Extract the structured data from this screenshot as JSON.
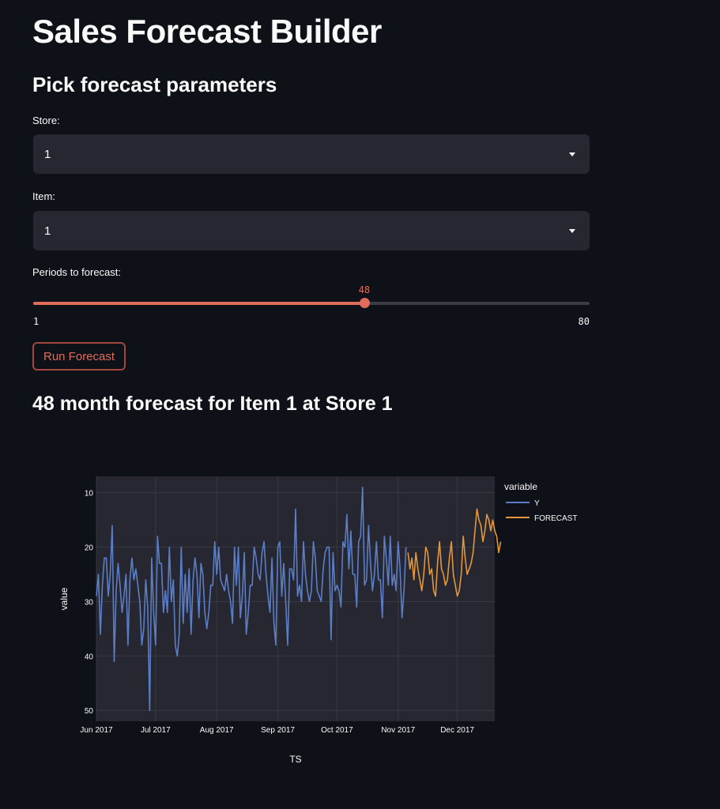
{
  "app": {
    "title": "Sales Forecast Builder",
    "subtitle": "Pick forecast parameters"
  },
  "store": {
    "label": "Store:",
    "value": "1"
  },
  "item": {
    "label": "Item:",
    "value": "1"
  },
  "periods": {
    "label": "Periods to forecast:",
    "value": 48,
    "value_text": "48",
    "min": 1,
    "min_text": "1",
    "max": 80,
    "max_text": "80"
  },
  "run_button": {
    "label": "Run Forecast"
  },
  "forecast_title": "48 month forecast for Item 1 at Store 1",
  "colors": {
    "accent": "#e06c5a",
    "background": "#0e1117",
    "input_bg": "#262730",
    "plot_bg": "#262730",
    "series_y": "#5b7ec6",
    "series_forecast": "#e3973a"
  },
  "chart_data": {
    "type": "line",
    "xlabel": "TS",
    "ylabel": "value",
    "y_reversed": true,
    "ylim": [
      52,
      7
    ],
    "xlim": [
      "2017-06-01",
      "2017-12-20"
    ],
    "x_ticks": [
      "Jun 2017",
      "Jul 2017",
      "Aug 2017",
      "Sep 2017",
      "Oct 2017",
      "Nov 2017",
      "Dec 2017"
    ],
    "x_tick_dates": [
      "2017-06-01",
      "2017-07-01",
      "2017-08-01",
      "2017-09-01",
      "2017-10-01",
      "2017-11-01",
      "2017-12-01"
    ],
    "y_ticks": [
      10,
      20,
      30,
      40,
      50
    ],
    "grid": true,
    "legend": {
      "title": "variable",
      "position": "right"
    },
    "series": [
      {
        "name": "Y",
        "start": "2017-06-01",
        "values": [
          29,
          25,
          36,
          27,
          22,
          22,
          29,
          25,
          16,
          41,
          28,
          23,
          27,
          32,
          29,
          25,
          38,
          26,
          22,
          26,
          24,
          27,
          30,
          38,
          35,
          26,
          31,
          50,
          22,
          32,
          38,
          18,
          23,
          23,
          32,
          28,
          32,
          20,
          30,
          26,
          38,
          40,
          36,
          20,
          34,
          25,
          32,
          24,
          36,
          26,
          22,
          25,
          33,
          23,
          25,
          32,
          35,
          32,
          27,
          27,
          19,
          25,
          20,
          26,
          27,
          28,
          25,
          28,
          30,
          34,
          20,
          27,
          20,
          33,
          29,
          21,
          36,
          32,
          27,
          27,
          20,
          22,
          25,
          26,
          21,
          19,
          25,
          29,
          32,
          22,
          34,
          38,
          20,
          19,
          29,
          23,
          30,
          38,
          24,
          24,
          26,
          13,
          29,
          27,
          30,
          19,
          25,
          28,
          30,
          28,
          19,
          22,
          28,
          29,
          30,
          24,
          21,
          20,
          20,
          37,
          21,
          28,
          27,
          28,
          31,
          19,
          20,
          14,
          24,
          17,
          25,
          25,
          31,
          19,
          18,
          9,
          27,
          26,
          16,
          23,
          28,
          25,
          19,
          26,
          26,
          33,
          18,
          22,
          27,
          18,
          27,
          25,
          28,
          19,
          24,
          33,
          28,
          20
        ]
      },
      {
        "name": "FORECAST",
        "start": "2017-11-06",
        "values": [
          21,
          24,
          22,
          26,
          21,
          24,
          26,
          28,
          25,
          20,
          21,
          25,
          24,
          28,
          29,
          23,
          19,
          24,
          25,
          27,
          26,
          22,
          19,
          25,
          27,
          29,
          28,
          25,
          18,
          22,
          25,
          24,
          23,
          21,
          17,
          13,
          15,
          16,
          19,
          17,
          14,
          15,
          17,
          15,
          17,
          18,
          21,
          19
        ]
      }
    ]
  }
}
